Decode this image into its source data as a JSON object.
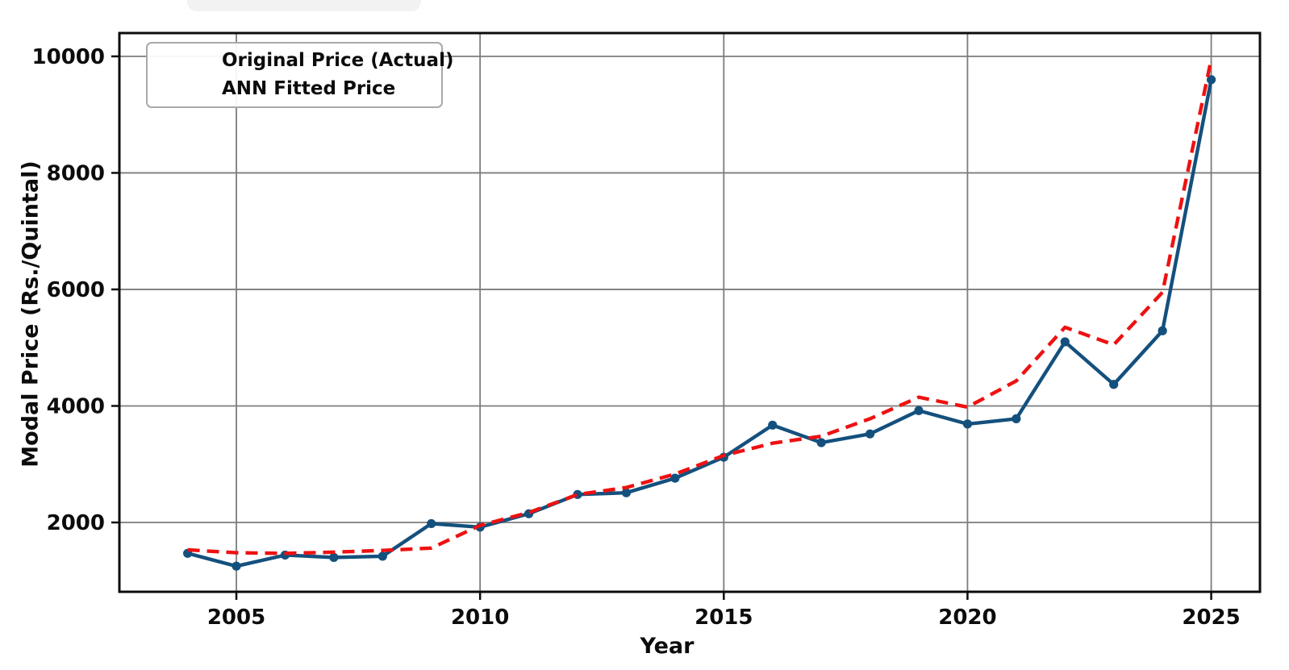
{
  "colors": {
    "actual_blue": "#14507d",
    "fitted_red": "#ee1111",
    "grid_gray": "#7c7c7c",
    "frame_black": "#0c0c0c"
  },
  "chart_data": {
    "type": "line",
    "title": "",
    "xlabel": "Year",
    "ylabel": "Modal Price (Rs./Quintal)",
    "grid": true,
    "legend_position": "upper-left",
    "x": [
      2004,
      2005,
      2006,
      2007,
      2008,
      2009,
      2010,
      2011,
      2012,
      2013,
      2014,
      2015,
      2016,
      2017,
      2018,
      2019,
      2020,
      2021,
      2022,
      2023,
      2024,
      2025
    ],
    "series": [
      {
        "name": "Original Price (Actual)",
        "color": "#14507d",
        "style": "solid",
        "marker": "circle",
        "values": [
          1470,
          1250,
          1440,
          1400,
          1420,
          1980,
          1920,
          2150,
          2480,
          2510,
          2760,
          3120,
          3670,
          3370,
          3520,
          3920,
          3690,
          3780,
          5100,
          4370,
          5290,
          9600
        ]
      },
      {
        "name": "ANN Fitted Price",
        "color": "#ee1111",
        "style": "dashed",
        "marker": "none",
        "values": [
          1530,
          1480,
          1470,
          1490,
          1520,
          1560,
          1950,
          2170,
          2480,
          2600,
          2830,
          3150,
          3360,
          3480,
          3780,
          4150,
          3980,
          4430,
          5350,
          5050,
          5950,
          9950
        ]
      }
    ],
    "x_ticks": [
      2005,
      2010,
      2015,
      2020,
      2025
    ],
    "y_ticks": [
      2000,
      4000,
      6000,
      8000,
      10000
    ],
    "xlim": [
      2002.6,
      2026.0
    ],
    "ylim": [
      810,
      10400
    ]
  }
}
